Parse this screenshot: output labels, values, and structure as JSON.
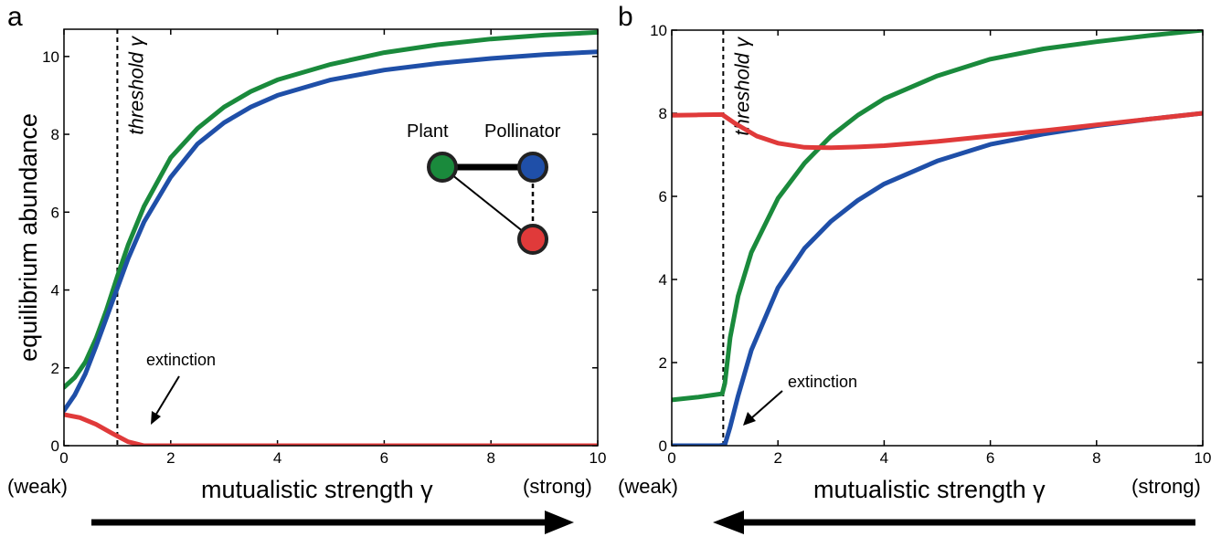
{
  "chart_data": [
    {
      "type": "line",
      "panel_label": "a",
      "xlabel": "mutualistic strength γ",
      "ylabel": "equilibrium abundance",
      "xlim": [
        0,
        10
      ],
      "ylim": [
        0,
        10.7
      ],
      "xticks": [
        "0",
        "2",
        "4",
        "6",
        "8",
        "10"
      ],
      "yticks": [
        "0",
        "2",
        "4",
        "6",
        "8",
        "10"
      ],
      "x_left_label": "(weak)",
      "x_right_label": "(strong)",
      "threshold": {
        "x": 1.0,
        "label": "threshold γ"
      },
      "annotation": {
        "text": "extinction",
        "x": 1.7,
        "y": 0.25
      },
      "arrow_direction": "right",
      "series": [
        {
          "color": "#1a8a3c",
          "x": [
            0,
            0.2,
            0.4,
            0.6,
            0.8,
            1.0,
            1.2,
            1.5,
            2,
            2.5,
            3,
            3.5,
            4,
            5,
            6,
            7,
            8,
            9,
            10
          ],
          "y": [
            1.5,
            1.75,
            2.15,
            2.75,
            3.5,
            4.35,
            5.15,
            6.15,
            7.4,
            8.15,
            8.7,
            9.1,
            9.4,
            9.8,
            10.1,
            10.3,
            10.45,
            10.55,
            10.62
          ]
        },
        {
          "color": "#1f4fa8",
          "x": [
            0,
            0.2,
            0.4,
            0.6,
            0.8,
            1.0,
            1.2,
            1.5,
            2,
            2.5,
            3,
            3.5,
            4,
            5,
            6,
            7,
            8,
            9,
            10
          ],
          "y": [
            0.9,
            1.3,
            1.85,
            2.55,
            3.3,
            4.05,
            4.8,
            5.75,
            6.9,
            7.75,
            8.3,
            8.7,
            9.0,
            9.4,
            9.65,
            9.82,
            9.95,
            10.05,
            10.12
          ]
        },
        {
          "color": "#e03a3a",
          "x": [
            0,
            0.3,
            0.6,
            0.9,
            1.2,
            1.5,
            2,
            4,
            6,
            8,
            10
          ],
          "y": [
            0.8,
            0.72,
            0.55,
            0.32,
            0.1,
            0.0,
            0.0,
            0.0,
            0.0,
            0.0,
            0.0
          ]
        }
      ],
      "legend": {
        "plant_label": "Plant",
        "pollinator_label": "Pollinator",
        "nodes": [
          {
            "color": "#1a8a3c"
          },
          {
            "color": "#1f4fa8"
          },
          {
            "color": "#e03a3a"
          }
        ]
      }
    },
    {
      "type": "line",
      "panel_label": "b",
      "xlabel": "mutualistic strength γ",
      "ylabel": "",
      "xlim": [
        0,
        10
      ],
      "ylim": [
        0,
        10
      ],
      "xticks": [
        "0",
        "2",
        "4",
        "6",
        "8",
        "10"
      ],
      "yticks": [
        "0",
        "2",
        "4",
        "6",
        "8",
        "10"
      ],
      "x_left_label": "(weak)",
      "x_right_label": "(strong)",
      "threshold": {
        "x": 0.97,
        "label": "threshold γ"
      },
      "annotation": {
        "text": "extinction",
        "x": 1.3,
        "y": 0.5
      },
      "arrow_direction": "left",
      "series": [
        {
          "color": "#1a8a3c",
          "x": [
            0,
            0.5,
            0.95,
            1.0,
            1.1,
            1.25,
            1.5,
            2,
            2.5,
            3,
            3.5,
            4,
            5,
            6,
            7,
            8,
            9,
            10
          ],
          "y": [
            1.1,
            1.17,
            1.25,
            1.5,
            2.6,
            3.6,
            4.65,
            5.95,
            6.8,
            7.45,
            7.95,
            8.35,
            8.9,
            9.3,
            9.55,
            9.72,
            9.87,
            10.0
          ]
        },
        {
          "color": "#1f4fa8",
          "x": [
            0,
            0.9,
            1.0,
            1.1,
            1.25,
            1.5,
            2,
            2.5,
            3,
            3.5,
            4,
            5,
            6,
            7,
            8,
            9,
            10
          ],
          "y": [
            0.0,
            0.0,
            0.02,
            0.45,
            1.2,
            2.3,
            3.8,
            4.75,
            5.4,
            5.9,
            6.3,
            6.85,
            7.25,
            7.5,
            7.7,
            7.86,
            8.0
          ]
        },
        {
          "color": "#e03a3a",
          "x": [
            0,
            0.5,
            0.95,
            1.2,
            1.6,
            2,
            2.5,
            3,
            3.5,
            4,
            5,
            6,
            7,
            8,
            9,
            10
          ],
          "y": [
            7.95,
            7.96,
            7.97,
            7.75,
            7.45,
            7.28,
            7.18,
            7.17,
            7.19,
            7.22,
            7.32,
            7.45,
            7.58,
            7.72,
            7.86,
            8.0
          ]
        }
      ]
    }
  ]
}
